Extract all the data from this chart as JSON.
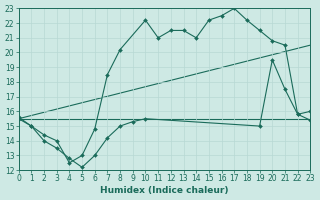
{
  "xlabel": "Humidex (Indice chaleur)",
  "xlim": [
    0,
    23
  ],
  "ylim": [
    12,
    23
  ],
  "xticks": [
    0,
    1,
    2,
    3,
    4,
    5,
    6,
    7,
    8,
    9,
    10,
    11,
    12,
    13,
    14,
    15,
    16,
    17,
    18,
    19,
    20,
    21,
    22,
    23
  ],
  "yticks": [
    12,
    13,
    14,
    15,
    16,
    17,
    18,
    19,
    20,
    21,
    22,
    23
  ],
  "bg_color": "#cee9e4",
  "grid_color": "#b8d8d4",
  "line_color": "#1a6b5a",
  "line1_x": [
    0,
    1,
    2,
    3,
    4,
    5,
    6,
    7,
    8,
    10,
    11,
    12,
    13,
    14,
    15,
    16,
    17,
    18,
    19,
    20,
    21,
    22,
    23
  ],
  "line1_y": [
    15.6,
    15.0,
    14.4,
    14.0,
    12.5,
    13.0,
    14.8,
    18.5,
    20.2,
    22.2,
    21.0,
    21.5,
    21.5,
    21.0,
    22.2,
    22.5,
    23.0,
    22.2,
    21.5,
    20.8,
    20.5,
    15.8,
    15.4
  ],
  "line2_x": [
    0,
    1,
    2,
    3,
    4,
    5,
    6,
    7,
    8,
    9,
    10,
    19,
    20,
    21,
    22,
    23
  ],
  "line2_y": [
    15.5,
    15.0,
    14.0,
    13.5,
    12.8,
    12.2,
    13.0,
    14.2,
    15.0,
    15.3,
    15.5,
    15.0,
    19.5,
    17.5,
    15.8,
    16.0
  ],
  "line3_x": [
    0,
    23
  ],
  "line3_y": [
    15.5,
    20.5
  ],
  "line4_x": [
    0,
    23
  ],
  "line4_y": [
    15.5,
    15.5
  ],
  "tick_fontsize": 5.5,
  "xlabel_fontsize": 6.5
}
